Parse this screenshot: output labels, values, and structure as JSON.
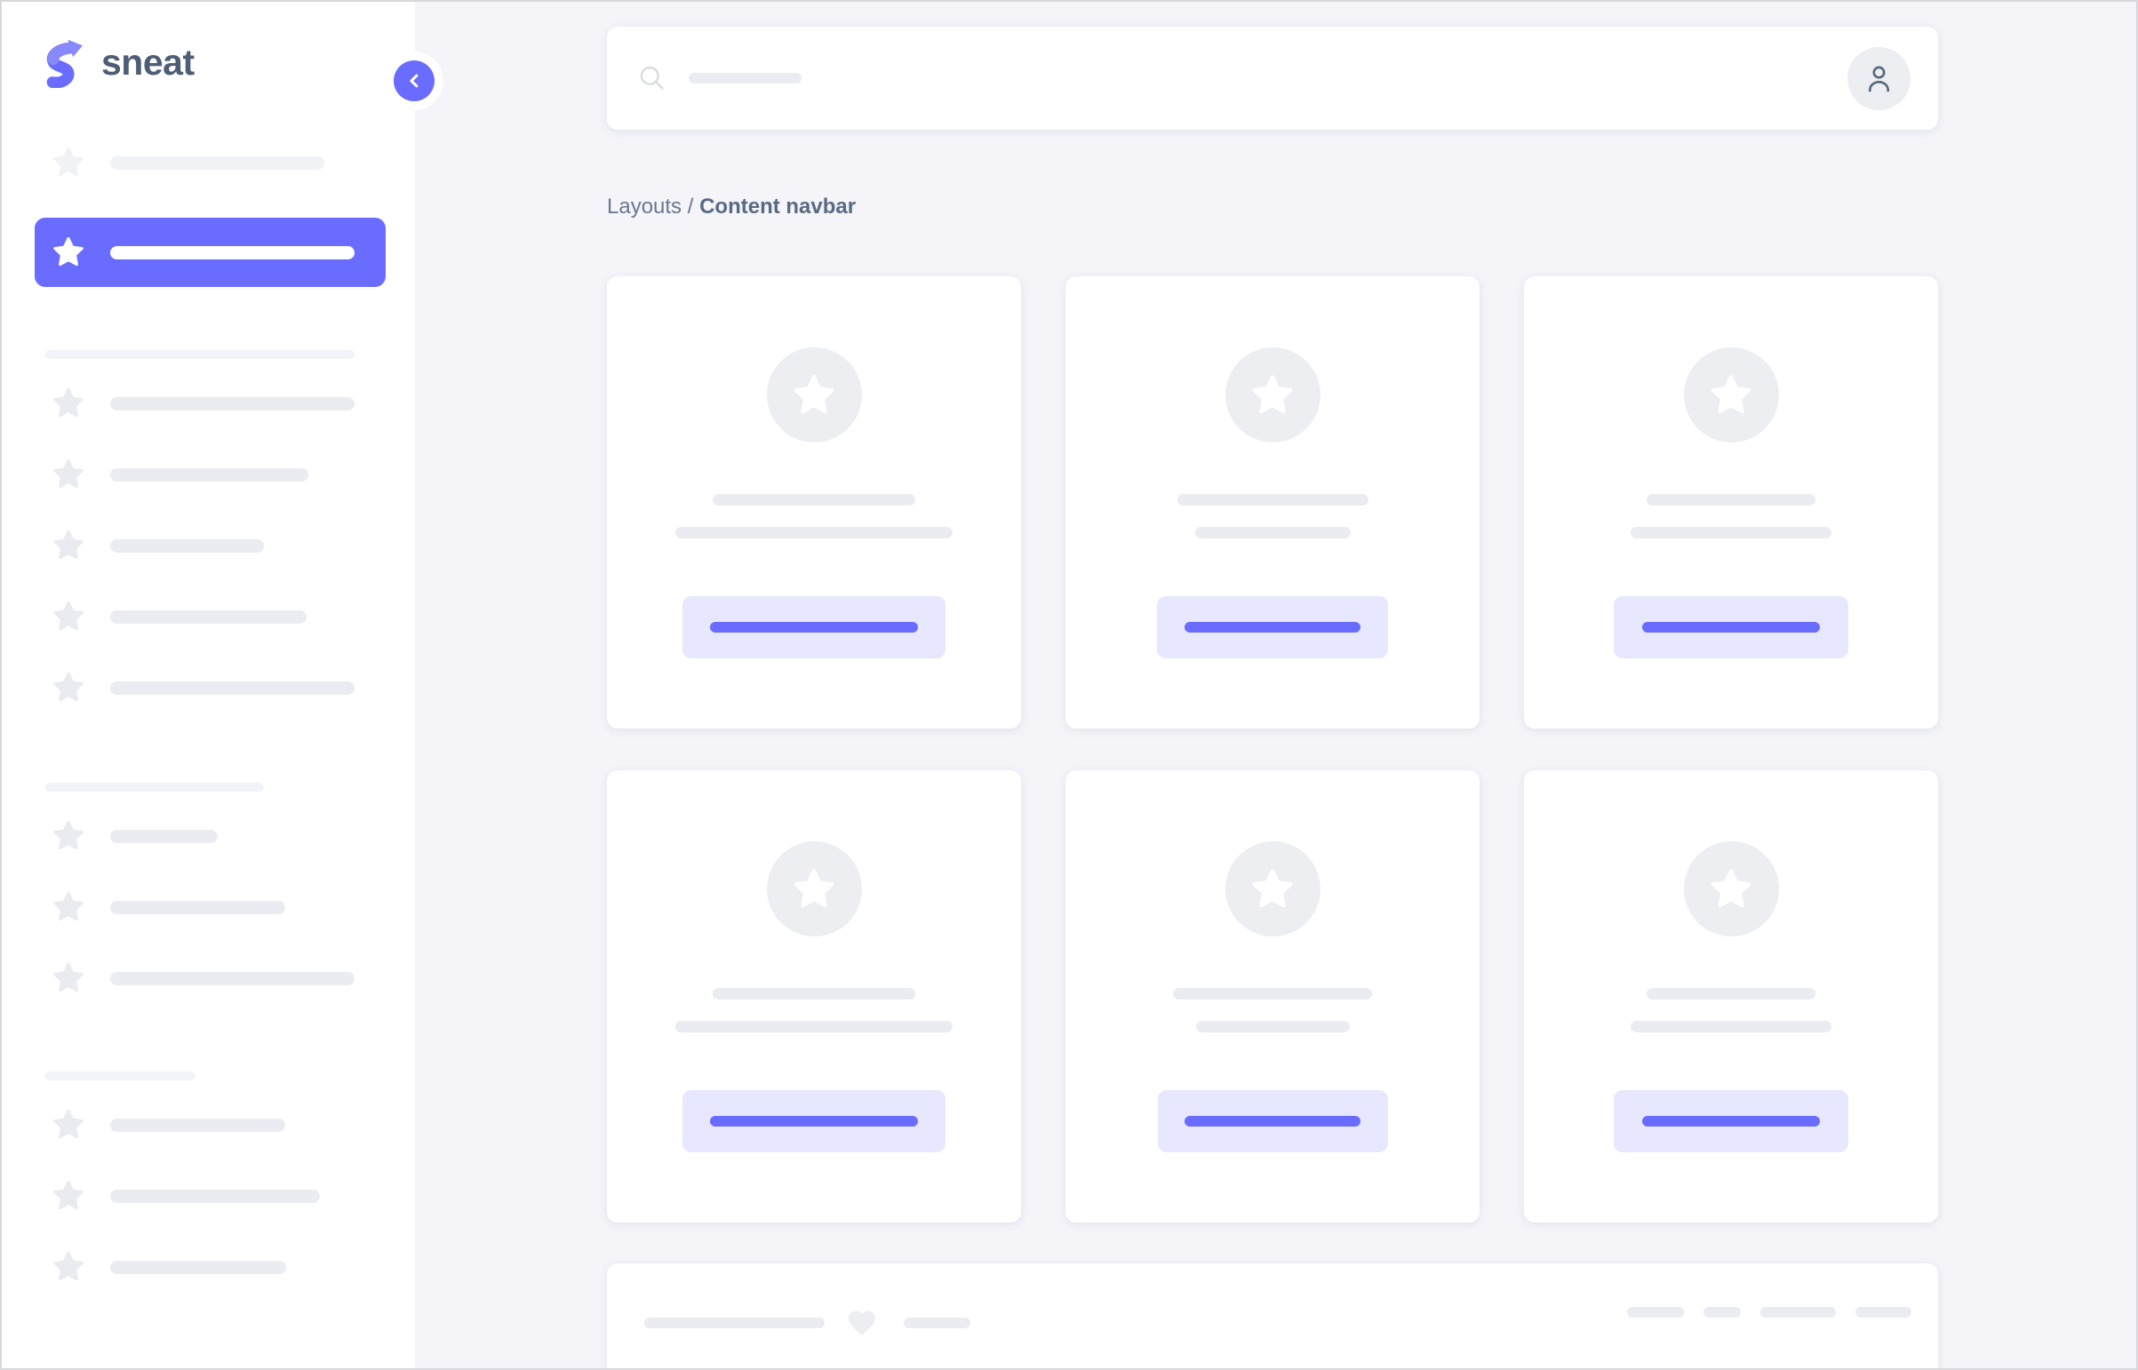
{
  "brand": {
    "name": "sneat"
  },
  "breadcrumb": {
    "section": "Layouts",
    "separator": "/",
    "current": "Content navbar"
  },
  "colors": {
    "primary": "#696cff",
    "primary_light": "#e7e7ff",
    "skeleton": "#eaecf1",
    "skeleton_faint": "#f0f2f6",
    "divider_skeleton": "#f2f3f8",
    "heading_text": "#596b83",
    "muted_text": "#6a7890",
    "page_bg": "#f4f4f9",
    "surface": "#ffffff"
  },
  "icons": {
    "logo": "sneat-s-arrow",
    "collapse": "chevron-left",
    "search": "magnifier",
    "avatar": "person-outline",
    "menu_item": "star",
    "like": "heart"
  },
  "sidebar": {
    "top_item_bar_width": 241,
    "active_item_bar_width": 275,
    "sections": [
      {
        "divider_width": 348,
        "item_bar_widths": [
          275,
          223,
          173,
          221,
          275
        ]
      },
      {
        "divider_width": 246,
        "item_bar_widths": [
          121,
          197,
          275
        ]
      },
      {
        "divider_width": 168,
        "item_bar_widths": [
          197,
          236,
          198
        ]
      }
    ]
  },
  "navbar": {
    "search_placeholder_bar_width": 127
  },
  "cards": {
    "items": [
      {
        "line1": 228,
        "line2": 312,
        "button": 296,
        "button_bar": 234
      },
      {
        "line1": 215,
        "line2": 175,
        "button": 260,
        "button_bar": 198
      },
      {
        "line1": 190,
        "line2": 226,
        "button": 264,
        "button_bar": 200
      },
      {
        "line1": 228,
        "line2": 312,
        "button": 296,
        "button_bar": 234
      },
      {
        "line1": 224,
        "line2": 173,
        "button": 259,
        "button_bar": 198
      },
      {
        "line1": 190,
        "line2": 226,
        "button": 264,
        "button_bar": 200
      }
    ]
  },
  "footer_card": {
    "left_bar_widths": [
      203,
      75
    ],
    "right_bar_widths": [
      64,
      42,
      85,
      63
    ]
  }
}
